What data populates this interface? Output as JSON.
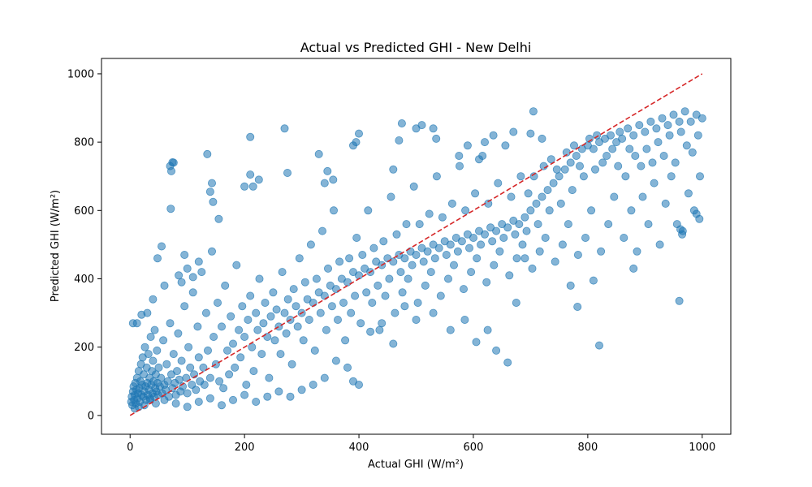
{
  "chart_data": {
    "type": "scatter",
    "title": "Actual vs Predicted GHI - New Delhi",
    "xlabel": "Actual GHI (W/m²)",
    "ylabel": "Predicted GHI (W/m²)",
    "xlim": [
      -50,
      1050
    ],
    "ylim": [
      -55,
      1045
    ],
    "xticks": [
      "0",
      "200",
      "400",
      "600",
      "800",
      "1000"
    ],
    "yticks": [
      "0",
      "200",
      "400",
      "600",
      "800",
      "1000"
    ],
    "grid": false,
    "point_color": "#1f77b4",
    "point_alpha": 0.55,
    "reference_line": {
      "style": "dashed",
      "color": "#d62728",
      "from": [
        0,
        0
      ],
      "to": [
        1000,
        1000
      ]
    },
    "points": [
      [
        2,
        40
      ],
      [
        3,
        55
      ],
      [
        4,
        30
      ],
      [
        5,
        70
      ],
      [
        6,
        85
      ],
      [
        7,
        45
      ],
      [
        8,
        60
      ],
      [
        9,
        95
      ],
      [
        10,
        35
      ],
      [
        11,
        75
      ],
      [
        12,
        110
      ],
      [
        13,
        50
      ],
      [
        14,
        65
      ],
      [
        15,
        130
      ],
      [
        16,
        80
      ],
      [
        17,
        40
      ],
      [
        18,
        100
      ],
      [
        19,
        150
      ],
      [
        20,
        60
      ],
      [
        21,
        90
      ],
      [
        22,
        170
      ],
      [
        23,
        55
      ],
      [
        24,
        120
      ],
      [
        25,
        70
      ],
      [
        26,
        200
      ],
      [
        27,
        85
      ],
      [
        28,
        45
      ],
      [
        29,
        140
      ],
      [
        30,
        95
      ],
      [
        31,
        60
      ],
      [
        32,
        180
      ],
      [
        33,
        75
      ],
      [
        34,
        110
      ],
      [
        35,
        50
      ],
      [
        36,
        230
      ],
      [
        37,
        90
      ],
      [
        38,
        130
      ],
      [
        39,
        65
      ],
      [
        40,
        160
      ],
      [
        41,
        100
      ],
      [
        42,
        55
      ],
      [
        43,
        250
      ],
      [
        44,
        80
      ],
      [
        45,
        120
      ],
      [
        46,
        70
      ],
      [
        47,
        190
      ],
      [
        48,
        95
      ],
      [
        49,
        60
      ],
      [
        50,
        140
      ],
      [
        52,
        85
      ],
      [
        54,
        110
      ],
      [
        56,
        65
      ],
      [
        58,
        220
      ],
      [
        60,
        90
      ],
      [
        62,
        75
      ],
      [
        64,
        150
      ],
      [
        66,
        100
      ],
      [
        68,
        55
      ],
      [
        70,
        270
      ],
      [
        72,
        120
      ],
      [
        74,
        80
      ],
      [
        76,
        180
      ],
      [
        78,
        95
      ],
      [
        80,
        60
      ],
      [
        82,
        130
      ],
      [
        84,
        240
      ],
      [
        86,
        105
      ],
      [
        88,
        70
      ],
      [
        90,
        160
      ],
      [
        92,
        85
      ],
      [
        95,
        320
      ],
      [
        98,
        110
      ],
      [
        100,
        65
      ],
      [
        102,
        200
      ],
      [
        105,
        140
      ],
      [
        108,
        90
      ],
      [
        110,
        360
      ],
      [
        112,
        120
      ],
      [
        115,
        75
      ],
      [
        118,
        260
      ],
      [
        120,
        170
      ],
      [
        122,
        100
      ],
      [
        125,
        420
      ],
      [
        128,
        140
      ],
      [
        130,
        90
      ],
      [
        133,
        300
      ],
      [
        136,
        190
      ],
      [
        140,
        110
      ],
      [
        143,
        480
      ],
      [
        146,
        230
      ],
      [
        150,
        150
      ],
      [
        153,
        330
      ],
      [
        156,
        100
      ],
      [
        160,
        260
      ],
      [
        163,
        80
      ],
      [
        166,
        380
      ],
      [
        170,
        190
      ],
      [
        173,
        120
      ],
      [
        176,
        290
      ],
      [
        180,
        210
      ],
      [
        183,
        140
      ],
      [
        186,
        440
      ],
      [
        190,
        250
      ],
      [
        193,
        170
      ],
      [
        196,
        320
      ],
      [
        200,
        230
      ],
      [
        203,
        90
      ],
      [
        206,
        280
      ],
      [
        210,
        350
      ],
      [
        213,
        200
      ],
      [
        216,
        130
      ],
      [
        220,
        300
      ],
      [
        223,
        250
      ],
      [
        226,
        400
      ],
      [
        230,
        180
      ],
      [
        233,
        270
      ],
      [
        236,
        330
      ],
      [
        240,
        230
      ],
      [
        243,
        110
      ],
      [
        246,
        290
      ],
      [
        250,
        360
      ],
      [
        253,
        220
      ],
      [
        256,
        310
      ],
      [
        260,
        260
      ],
      [
        263,
        180
      ],
      [
        266,
        420
      ],
      [
        270,
        300
      ],
      [
        273,
        240
      ],
      [
        276,
        340
      ],
      [
        280,
        280
      ],
      [
        283,
        150
      ],
      [
        286,
        370
      ],
      [
        290,
        320
      ],
      [
        293,
        260
      ],
      [
        296,
        460
      ],
      [
        300,
        300
      ],
      [
        303,
        220
      ],
      [
        306,
        390
      ],
      [
        310,
        340
      ],
      [
        313,
        280
      ],
      [
        316,
        500
      ],
      [
        320,
        330
      ],
      [
        323,
        190
      ],
      [
        326,
        400
      ],
      [
        330,
        360
      ],
      [
        333,
        300
      ],
      [
        336,
        540
      ],
      [
        340,
        350
      ],
      [
        343,
        250
      ],
      [
        346,
        430
      ],
      [
        350,
        380
      ],
      [
        353,
        320
      ],
      [
        356,
        600
      ],
      [
        360,
        370
      ],
      [
        363,
        280
      ],
      [
        366,
        450
      ],
      [
        370,
        400
      ],
      [
        373,
        330
      ],
      [
        376,
        220
      ],
      [
        380,
        390
      ],
      [
        383,
        460
      ],
      [
        386,
        300
      ],
      [
        390,
        420
      ],
      [
        393,
        350
      ],
      [
        396,
        520
      ],
      [
        400,
        410
      ],
      [
        403,
        270
      ],
      [
        406,
        470
      ],
      [
        410,
        430
      ],
      [
        413,
        360
      ],
      [
        416,
        600
      ],
      [
        420,
        420
      ],
      [
        423,
        330
      ],
      [
        426,
        490
      ],
      [
        430,
        450
      ],
      [
        433,
        380
      ],
      [
        436,
        250
      ],
      [
        440,
        440
      ],
      [
        443,
        510
      ],
      [
        446,
        350
      ],
      [
        450,
        460
      ],
      [
        453,
        400
      ],
      [
        456,
        640
      ],
      [
        460,
        450
      ],
      [
        463,
        300
      ],
      [
        466,
        530
      ],
      [
        470,
        470
      ],
      [
        473,
        420
      ],
      [
        476,
        360
      ],
      [
        480,
        460
      ],
      [
        483,
        560
      ],
      [
        486,
        400
      ],
      [
        490,
        480
      ],
      [
        493,
        440
      ],
      [
        496,
        670
      ],
      [
        500,
        470
      ],
      [
        503,
        330
      ],
      [
        506,
        560
      ],
      [
        510,
        490
      ],
      [
        513,
        450
      ],
      [
        516,
        380
      ],
      [
        520,
        480
      ],
      [
        523,
        590
      ],
      [
        526,
        420
      ],
      [
        530,
        500
      ],
      [
        533,
        460
      ],
      [
        536,
        700
      ],
      [
        540,
        490
      ],
      [
        543,
        350
      ],
      [
        546,
        580
      ],
      [
        550,
        510
      ],
      [
        553,
        470
      ],
      [
        556,
        400
      ],
      [
        560,
        500
      ],
      [
        563,
        620
      ],
      [
        566,
        440
      ],
      [
        570,
        520
      ],
      [
        573,
        480
      ],
      [
        576,
        730
      ],
      [
        580,
        510
      ],
      [
        583,
        370
      ],
      [
        586,
        600
      ],
      [
        590,
        530
      ],
      [
        593,
        490
      ],
      [
        596,
        420
      ],
      [
        600,
        520
      ],
      [
        603,
        650
      ],
      [
        606,
        460
      ],
      [
        610,
        540
      ],
      [
        613,
        500
      ],
      [
        616,
        760
      ],
      [
        620,
        530
      ],
      [
        623,
        390
      ],
      [
        626,
        620
      ],
      [
        630,
        550
      ],
      [
        633,
        510
      ],
      [
        636,
        440
      ],
      [
        640,
        540
      ],
      [
        643,
        680
      ],
      [
        646,
        480
      ],
      [
        650,
        560
      ],
      [
        653,
        520
      ],
      [
        656,
        790
      ],
      [
        660,
        550
      ],
      [
        663,
        410
      ],
      [
        666,
        640
      ],
      [
        670,
        570
      ],
      [
        673,
        530
      ],
      [
        676,
        460
      ],
      [
        680,
        560
      ],
      [
        683,
        700
      ],
      [
        686,
        500
      ],
      [
        690,
        580
      ],
      [
        693,
        540
      ],
      [
        696,
        650
      ],
      [
        700,
        600
      ],
      [
        703,
        430
      ],
      [
        706,
        700
      ],
      [
        710,
        620
      ],
      [
        713,
        560
      ],
      [
        716,
        480
      ],
      [
        720,
        640
      ],
      [
        723,
        730
      ],
      [
        726,
        520
      ],
      [
        730,
        660
      ],
      [
        733,
        600
      ],
      [
        736,
        750
      ],
      [
        740,
        680
      ],
      [
        743,
        450
      ],
      [
        746,
        720
      ],
      [
        750,
        700
      ],
      [
        753,
        620
      ],
      [
        756,
        500
      ],
      [
        760,
        720
      ],
      [
        763,
        770
      ],
      [
        766,
        560
      ],
      [
        770,
        740
      ],
      [
        773,
        660
      ],
      [
        776,
        790
      ],
      [
        780,
        760
      ],
      [
        783,
        470
      ],
      [
        786,
        730
      ],
      [
        790,
        780
      ],
      [
        793,
        700
      ],
      [
        796,
        520
      ],
      [
        800,
        790
      ],
      [
        803,
        810
      ],
      [
        806,
        600
      ],
      [
        810,
        780
      ],
      [
        813,
        720
      ],
      [
        816,
        820
      ],
      [
        820,
        800
      ],
      [
        823,
        480
      ],
      [
        826,
        740
      ],
      [
        830,
        810
      ],
      [
        833,
        760
      ],
      [
        836,
        560
      ],
      [
        840,
        820
      ],
      [
        843,
        780
      ],
      [
        846,
        640
      ],
      [
        850,
        800
      ],
      [
        853,
        730
      ],
      [
        856,
        830
      ],
      [
        860,
        810
      ],
      [
        863,
        520
      ],
      [
        866,
        700
      ],
      [
        870,
        840
      ],
      [
        873,
        780
      ],
      [
        876,
        600
      ],
      [
        880,
        820
      ],
      [
        883,
        760
      ],
      [
        886,
        480
      ],
      [
        890,
        850
      ],
      [
        893,
        730
      ],
      [
        896,
        640
      ],
      [
        900,
        830
      ],
      [
        903,
        780
      ],
      [
        906,
        560
      ],
      [
        910,
        860
      ],
      [
        913,
        740
      ],
      [
        916,
        680
      ],
      [
        920,
        840
      ],
      [
        923,
        800
      ],
      [
        926,
        500
      ],
      [
        930,
        870
      ],
      [
        933,
        760
      ],
      [
        936,
        620
      ],
      [
        940,
        850
      ],
      [
        943,
        820
      ],
      [
        946,
        700
      ],
      [
        950,
        880
      ],
      [
        953,
        740
      ],
      [
        956,
        560
      ],
      [
        960,
        860
      ],
      [
        963,
        830
      ],
      [
        966,
        540
      ],
      [
        970,
        890
      ],
      [
        973,
        790
      ],
      [
        976,
        650
      ],
      [
        980,
        860
      ],
      [
        983,
        770
      ],
      [
        986,
        600
      ],
      [
        990,
        880
      ],
      [
        993,
        820
      ],
      [
        996,
        700
      ],
      [
        1000,
        870
      ],
      [
        995,
        575
      ],
      [
        990,
        590
      ],
      [
        965,
        530
      ],
      [
        962,
        545
      ],
      [
        960,
        335
      ],
      [
        880,
        430
      ],
      [
        820,
        205
      ],
      [
        810,
        395
      ],
      [
        782,
        318
      ],
      [
        770,
        380
      ],
      [
        690,
        460
      ],
      [
        675,
        330
      ],
      [
        660,
        155
      ],
      [
        640,
        190
      ],
      [
        625,
        250
      ],
      [
        605,
        215
      ],
      [
        585,
        280
      ],
      [
        560,
        250
      ],
      [
        530,
        300
      ],
      [
        500,
        280
      ],
      [
        480,
        320
      ],
      [
        460,
        210
      ],
      [
        440,
        270
      ],
      [
        420,
        245
      ],
      [
        400,
        90
      ],
      [
        390,
        100
      ],
      [
        380,
        140
      ],
      [
        360,
        160
      ],
      [
        340,
        110
      ],
      [
        320,
        90
      ],
      [
        300,
        75
      ],
      [
        280,
        55
      ],
      [
        260,
        70
      ],
      [
        240,
        55
      ],
      [
        220,
        40
      ],
      [
        200,
        60
      ],
      [
        180,
        45
      ],
      [
        160,
        30
      ],
      [
        140,
        50
      ],
      [
        120,
        40
      ],
      [
        100,
        25
      ],
      [
        80,
        35
      ],
      [
        60,
        45
      ],
      [
        45,
        35
      ],
      [
        35,
        45
      ],
      [
        25,
        30
      ],
      [
        15,
        25
      ],
      [
        8,
        20
      ],
      [
        74,
        741
      ],
      [
        70,
        730
      ],
      [
        72,
        715
      ],
      [
        76,
        740
      ],
      [
        71,
        605
      ],
      [
        135,
        765
      ],
      [
        143,
        680
      ],
      [
        140,
        655
      ],
      [
        145,
        625
      ],
      [
        155,
        575
      ],
      [
        200,
        670
      ],
      [
        210,
        705
      ],
      [
        215,
        670
      ],
      [
        225,
        690
      ],
      [
        210,
        815
      ],
      [
        270,
        840
      ],
      [
        275,
        710
      ],
      [
        330,
        765
      ],
      [
        340,
        680
      ],
      [
        345,
        715
      ],
      [
        355,
        690
      ],
      [
        390,
        790
      ],
      [
        400,
        825
      ],
      [
        395,
        800
      ],
      [
        470,
        805
      ],
      [
        475,
        855
      ],
      [
        460,
        720
      ],
      [
        500,
        840
      ],
      [
        510,
        850
      ],
      [
        530,
        840
      ],
      [
        535,
        810
      ],
      [
        575,
        760
      ],
      [
        590,
        790
      ],
      [
        610,
        750
      ],
      [
        620,
        800
      ],
      [
        635,
        820
      ],
      [
        670,
        830
      ],
      [
        700,
        825
      ],
      [
        705,
        890
      ],
      [
        720,
        810
      ],
      [
        100,
        430
      ],
      [
        110,
        405
      ],
      [
        120,
        450
      ],
      [
        90,
        390
      ],
      [
        85,
        410
      ],
      [
        95,
        470
      ],
      [
        55,
        495
      ],
      [
        48,
        460
      ],
      [
        60,
        380
      ],
      [
        40,
        340
      ],
      [
        30,
        300
      ],
      [
        20,
        295
      ],
      [
        12,
        270
      ],
      [
        5,
        270
      ]
    ]
  }
}
